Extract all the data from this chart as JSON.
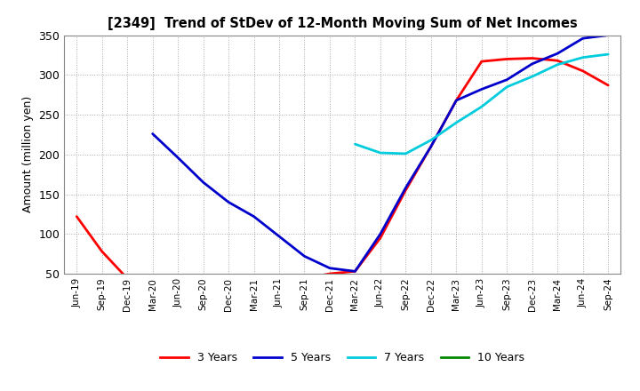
{
  "title": "[2349]  Trend of StDev of 12-Month Moving Sum of Net Incomes",
  "ylabel": "Amount (million yen)",
  "ylim": [
    50,
    350
  ],
  "yticks": [
    50,
    100,
    150,
    200,
    250,
    300,
    350
  ],
  "background_color": "#ffffff",
  "plot_bg_color": "#ffffff",
  "grid_color": "#aaaaaa",
  "series": {
    "3 Years": {
      "color": "#ff0000",
      "x": [
        "Jun-19",
        "Sep-19",
        "Dec-19",
        "Mar-20",
        "Jun-20",
        "Sep-20",
        "Dec-20",
        "Mar-21",
        "Jun-21",
        "Sep-21",
        "Dec-21",
        "Mar-22",
        "Jun-22",
        "Sep-22",
        "Dec-22",
        "Mar-23",
        "Jun-23",
        "Sep-23",
        "Dec-23",
        "Mar-24",
        "Jun-24",
        "Sep-24"
      ],
      "y": [
        122,
        78,
        44,
        44,
        43,
        42,
        42,
        42,
        42,
        44,
        50,
        53,
        95,
        155,
        210,
        268,
        317,
        320,
        321,
        318,
        305,
        287
      ]
    },
    "5 Years": {
      "color": "#0000cc",
      "x": [
        "Mar-20",
        "Jun-20",
        "Sep-20",
        "Dec-20",
        "Mar-21",
        "Jun-21",
        "Sep-21",
        "Dec-21",
        "Mar-22",
        "Jun-22",
        "Sep-22",
        "Dec-22",
        "Mar-23",
        "Jun-23",
        "Sep-23",
        "Dec-23",
        "Mar-24",
        "Jun-24",
        "Sep-24"
      ],
      "y": [
        226,
        196,
        165,
        140,
        122,
        97,
        72,
        57,
        53,
        100,
        158,
        210,
        268,
        282,
        294,
        314,
        327,
        346,
        350
      ]
    },
    "7 Years": {
      "color": "#00ccdd",
      "x": [
        "Mar-22",
        "Jun-22",
        "Sep-22",
        "Dec-22",
        "Mar-23",
        "Jun-23",
        "Sep-23",
        "Dec-23",
        "Mar-24",
        "Jun-24",
        "Sep-24"
      ],
      "y": [
        213,
        202,
        201,
        218,
        240,
        260,
        285,
        298,
        313,
        322,
        326
      ]
    },
    "10 Years": {
      "color": "#008800",
      "x": [],
      "y": []
    }
  },
  "legend": [
    "3 Years",
    "5 Years",
    "7 Years",
    "10 Years"
  ],
  "legend_colors": [
    "#ff0000",
    "#0000cc",
    "#00ccdd",
    "#008800"
  ],
  "all_xticks": [
    "Jun-19",
    "Sep-19",
    "Dec-19",
    "Mar-20",
    "Jun-20",
    "Sep-20",
    "Dec-20",
    "Mar-21",
    "Jun-21",
    "Sep-21",
    "Dec-21",
    "Mar-22",
    "Jun-22",
    "Sep-22",
    "Dec-22",
    "Mar-23",
    "Jun-23",
    "Sep-23",
    "Dec-23",
    "Mar-24",
    "Jun-24",
    "Sep-24"
  ]
}
